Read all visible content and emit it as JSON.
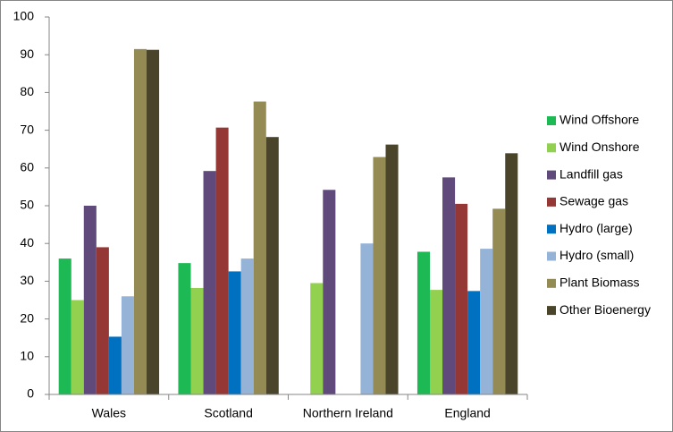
{
  "chart_data": {
    "type": "bar",
    "categories": [
      "Wales",
      "Scotland",
      "Northern Ireland",
      "England"
    ],
    "series": [
      {
        "name": "Wind Offshore",
        "color": "#1db954",
        "values": [
          36,
          34.8,
          null,
          37.8
        ]
      },
      {
        "name": "Wind Onshore",
        "color": "#92d050",
        "values": [
          25,
          28.2,
          29.5,
          27.7
        ]
      },
      {
        "name": "Landfill gas",
        "color": "#604a7b",
        "values": [
          50,
          59.2,
          54.2,
          57.5
        ]
      },
      {
        "name": "Sewage gas",
        "color": "#953735",
        "values": [
          39,
          70.7,
          null,
          50.5
        ]
      },
      {
        "name": "Hydro (large)",
        "color": "#0070c0",
        "values": [
          15.3,
          32.6,
          null,
          27.4
        ]
      },
      {
        "name": "Hydro (small)",
        "color": "#95b3d7",
        "values": [
          26,
          36,
          40,
          38.6
        ]
      },
      {
        "name": "Plant Biomass",
        "color": "#948a54",
        "values": [
          91.5,
          77.6,
          62.9,
          49.2
        ]
      },
      {
        "name": "Other Bioenergy",
        "color": "#4a452a",
        "values": [
          91.3,
          68.2,
          66.2,
          63.9
        ]
      }
    ],
    "ylim": [
      0,
      100
    ],
    "yticks": [
      0,
      10,
      20,
      30,
      40,
      50,
      60,
      70,
      80,
      90,
      100
    ],
    "grid": false,
    "legend": "right"
  }
}
